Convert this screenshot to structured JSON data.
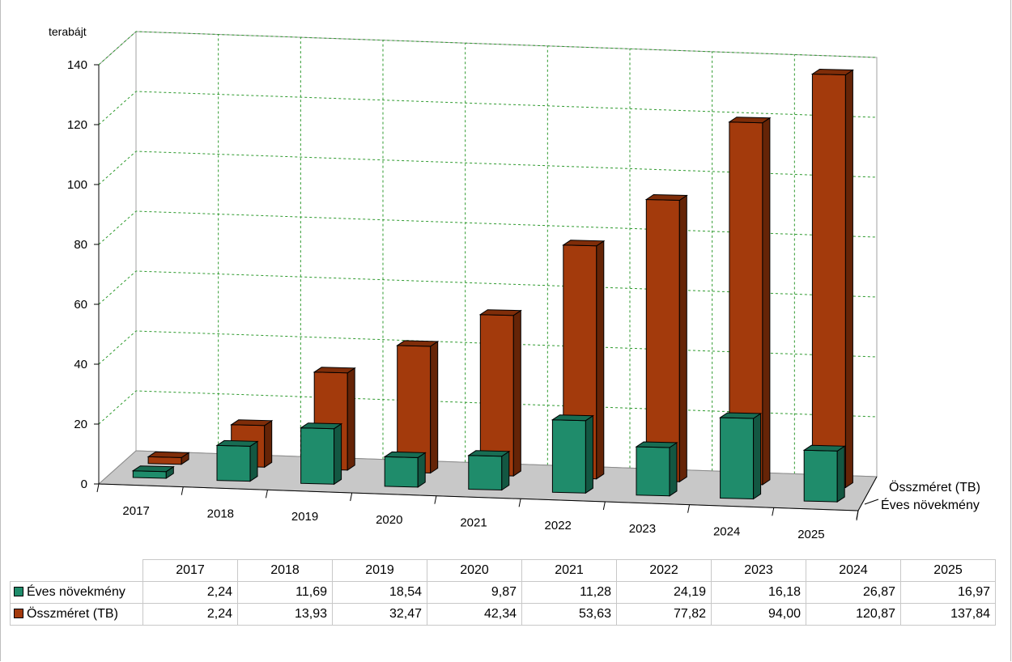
{
  "chart_data": {
    "type": "bar",
    "title": "",
    "ylabel": "terabájt",
    "xlabel": "",
    "ylim": [
      0,
      140
    ],
    "yticks": [
      0,
      20,
      40,
      60,
      80,
      100,
      120,
      140
    ],
    "categories": [
      "2017",
      "2018",
      "2019",
      "2020",
      "2021",
      "2022",
      "2023",
      "2024",
      "2025"
    ],
    "series": [
      {
        "name": "Éves növekmény",
        "color": "#1f8c6b",
        "values": [
          2.24,
          11.69,
          18.54,
          9.87,
          11.28,
          24.19,
          16.18,
          26.87,
          16.97
        ],
        "labels": [
          "2,24",
          "11,69",
          "18,54",
          "9,87",
          "11,28",
          "24,19",
          "16,18",
          "26,87",
          "16,97"
        ]
      },
      {
        "name": "Összméret (TB)",
        "color": "#a33a0c",
        "values": [
          2.24,
          13.93,
          32.47,
          42.34,
          53.63,
          77.82,
          94.0,
          120.87,
          137.84
        ],
        "labels": [
          "2,24",
          "13,93",
          "32,47",
          "42,34",
          "53,63",
          "77,82",
          "94,00",
          "120,87",
          "137,84"
        ]
      }
    ],
    "grid": true,
    "style": "3d",
    "data_table": true
  }
}
